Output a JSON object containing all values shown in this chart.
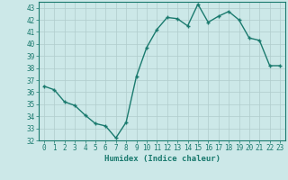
{
  "x": [
    0,
    1,
    2,
    3,
    4,
    5,
    6,
    7,
    8,
    9,
    10,
    11,
    12,
    13,
    14,
    15,
    16,
    17,
    18,
    19,
    20,
    21,
    22,
    23
  ],
  "y": [
    36.5,
    36.2,
    35.2,
    34.9,
    34.1,
    33.4,
    33.2,
    32.2,
    33.5,
    37.3,
    39.7,
    41.2,
    42.2,
    42.1,
    41.5,
    43.3,
    41.8,
    42.3,
    42.7,
    42.0,
    40.5,
    40.3,
    38.2,
    38.2
  ],
  "line_color": "#1a7a6e",
  "marker": "+",
  "markersize": 3.5,
  "linewidth": 1.0,
  "bg_color": "#cce8e8",
  "grid_major_color": "#b0cccc",
  "grid_minor_color": "#b8d4d4",
  "xlabel": "Humidex (Indice chaleur)",
  "xlim": [
    -0.5,
    23.5
  ],
  "ylim": [
    32,
    43.5
  ],
  "yticks": [
    32,
    33,
    34,
    35,
    36,
    37,
    38,
    39,
    40,
    41,
    42,
    43
  ],
  "xticks": [
    0,
    1,
    2,
    3,
    4,
    5,
    6,
    7,
    8,
    9,
    10,
    11,
    12,
    13,
    14,
    15,
    16,
    17,
    18,
    19,
    20,
    21,
    22,
    23
  ],
  "tick_fontsize": 5.5,
  "label_fontsize": 6.5,
  "spine_color": "#1a7a6e"
}
